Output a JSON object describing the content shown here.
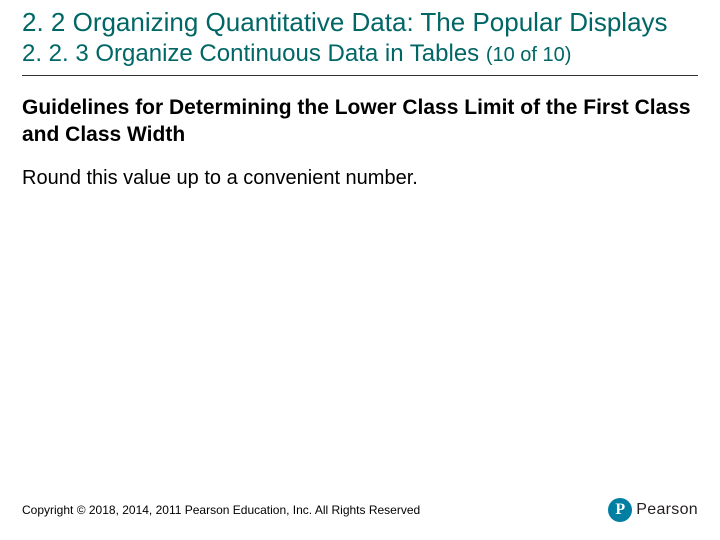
{
  "header": {
    "section_title": "2. 2 Organizing Quantitative Data: The Popular Displays",
    "subsection_title": "2. 2. 3 Organize Continuous Data in Tables",
    "subsection_counter": "(10 of 10)"
  },
  "content": {
    "heading": "Guidelines for Determining the Lower Class Limit of the First Class and Class Width",
    "body": "Round this value up to a convenient number."
  },
  "footer": {
    "copyright": "Copyright © 2018, 2014, 2011 Pearson Education, Inc. All Rights Reserved",
    "logo_letter": "P",
    "logo_text": "Pearson"
  },
  "styling": {
    "title_color": "#006666",
    "text_color": "#000000",
    "logo_bg": "#007fa3",
    "logo_text_color": "#231f20",
    "bg_color": "#ffffff",
    "title_fontsize": 26,
    "subsection_fontsize": 24,
    "counter_fontsize": 20,
    "heading_fontsize": 21,
    "body_fontsize": 20,
    "copyright_fontsize": 12
  }
}
